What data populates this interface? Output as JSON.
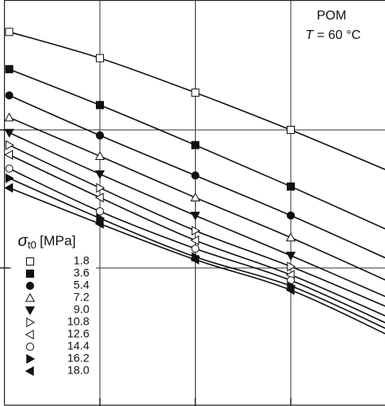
{
  "chart_data": {
    "type": "line",
    "annotation": [
      "POM",
      {
        "symbol": "T",
        "text": "= 60 °C"
      }
    ],
    "legend_title": {
      "symbol": "σ",
      "subscript": "t0",
      "unit": "[MPa]"
    },
    "x": [
      0.05,
      1,
      2,
      3,
      4
    ],
    "xlim": [
      0,
      4
    ],
    "xticks": [
      1,
      2,
      3
    ],
    "ylim": [
      0,
      3
    ],
    "yticks": [
      1,
      2
    ],
    "grid": true,
    "series": [
      {
        "name": "1.8",
        "color": "#111111",
        "marker": "square",
        "filled": false,
        "values": [
          2.71,
          2.52,
          2.27,
          2.0,
          1.71
        ]
      },
      {
        "name": "3.6",
        "color": "#111111",
        "marker": "square",
        "filled": true,
        "values": [
          2.44,
          2.18,
          1.89,
          1.59,
          1.28
        ]
      },
      {
        "name": "5.4",
        "color": "#111111",
        "marker": "circle",
        "filled": true,
        "values": [
          2.25,
          1.96,
          1.67,
          1.38,
          1.07
        ]
      },
      {
        "name": "7.2",
        "color": "#111111",
        "marker": "triangle-up",
        "filled": false,
        "values": [
          2.09,
          1.81,
          1.51,
          1.22,
          0.91
        ]
      },
      {
        "name": "9.0",
        "color": "#111111",
        "marker": "triangle-down",
        "filled": true,
        "values": [
          1.98,
          1.68,
          1.38,
          1.09,
          0.79
        ]
      },
      {
        "name": "10.8",
        "color": "#111111",
        "marker": "triangle-right",
        "filled": false,
        "values": [
          1.89,
          1.58,
          1.27,
          1.01,
          0.72
        ]
      },
      {
        "name": "12.6",
        "color": "#111111",
        "marker": "triangle-left",
        "filled": false,
        "values": [
          1.82,
          1.51,
          1.2,
          0.95,
          0.65
        ]
      },
      {
        "name": "14.4",
        "color": "#111111",
        "marker": "circle",
        "filled": false,
        "values": [
          1.72,
          1.41,
          1.14,
          0.91,
          0.6
        ]
      },
      {
        "name": "16.2",
        "color": "#111111",
        "marker": "triangle-right",
        "filled": true,
        "values": [
          1.65,
          1.36,
          1.08,
          0.87,
          0.56
        ]
      },
      {
        "name": "18.0",
        "color": "#111111",
        "marker": "triangle-left",
        "filled": true,
        "values": [
          1.58,
          1.32,
          1.06,
          0.84,
          0.52
        ]
      }
    ]
  }
}
